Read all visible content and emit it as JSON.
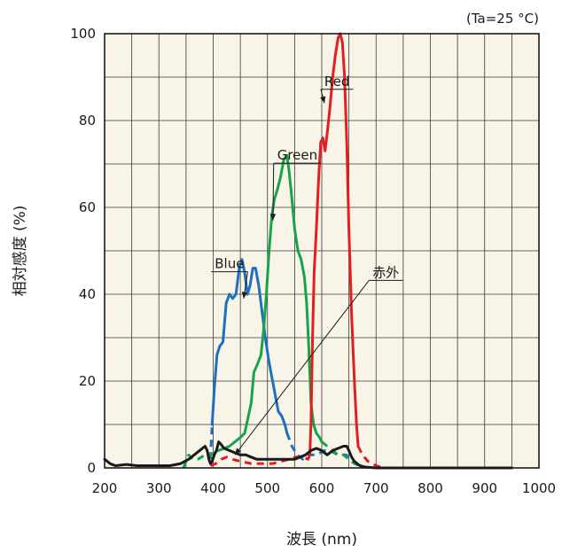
{
  "chart_data": {
    "type": "line",
    "condition": "(Ta=25 °C)",
    "xlabel": "波長 (nm)",
    "ylabel": "相対感度 (%)",
    "xlim": [
      200,
      1000
    ],
    "ylim": [
      0,
      100
    ],
    "xticks": [
      200,
      300,
      400,
      500,
      600,
      700,
      800,
      900,
      1000
    ],
    "yticks": [
      0,
      20,
      40,
      60,
      80,
      100
    ],
    "grid": true,
    "background": "#f8f4e8",
    "series": [
      {
        "name": "Blue",
        "color": "#1e6fbf",
        "solid": [
          [
            398,
            10
          ],
          [
            402,
            18
          ],
          [
            407,
            26
          ],
          [
            412,
            28
          ],
          [
            418,
            29
          ],
          [
            424,
            38
          ],
          [
            430,
            40
          ],
          [
            436,
            39
          ],
          [
            442,
            40
          ],
          [
            448,
            46
          ],
          [
            453,
            48
          ],
          [
            458,
            45
          ],
          [
            463,
            40
          ],
          [
            468,
            42
          ],
          [
            473,
            46
          ],
          [
            478,
            46
          ],
          [
            484,
            42
          ],
          [
            490,
            36
          ],
          [
            496,
            30
          ],
          [
            502,
            25
          ],
          [
            508,
            21
          ],
          [
            514,
            17
          ],
          [
            520,
            13
          ],
          [
            526,
            12
          ],
          [
            532,
            10
          ],
          [
            536,
            8
          ]
        ],
        "dashed": [
          [
            395,
            2
          ],
          [
            398,
            10
          ]
        ],
        "dashed_tail": [
          [
            536,
            8
          ],
          [
            545,
            5
          ],
          [
            555,
            3
          ],
          [
            565,
            2
          ],
          [
            575,
            3
          ],
          [
            590,
            3
          ],
          [
            605,
            4
          ],
          [
            615,
            4
          ],
          [
            630,
            3
          ],
          [
            645,
            3
          ],
          [
            660,
            1
          ],
          [
            670,
            0.5
          ]
        ]
      },
      {
        "name": "Green",
        "color": "#17a34a",
        "solid": [
          [
            410,
            4
          ],
          [
            420,
            4.5
          ],
          [
            430,
            5
          ],
          [
            440,
            6
          ],
          [
            450,
            7
          ],
          [
            458,
            8
          ],
          [
            465,
            12
          ],
          [
            470,
            15
          ],
          [
            475,
            22
          ],
          [
            482,
            24
          ],
          [
            488,
            26
          ],
          [
            493,
            32
          ],
          [
            498,
            40
          ],
          [
            503,
            50
          ],
          [
            508,
            58
          ],
          [
            513,
            62
          ],
          [
            518,
            64
          ],
          [
            524,
            67
          ],
          [
            530,
            71
          ],
          [
            536,
            72
          ],
          [
            540,
            68
          ],
          [
            545,
            62
          ],
          [
            550,
            55
          ],
          [
            556,
            50
          ],
          [
            562,
            48
          ],
          [
            568,
            44
          ],
          [
            572,
            38
          ],
          [
            576,
            28
          ],
          [
            580,
            15
          ],
          [
            585,
            10
          ],
          [
            590,
            8
          ],
          [
            596,
            7
          ],
          [
            600,
            6
          ]
        ],
        "dashed": [
          [
            345,
            0
          ],
          [
            350,
            1.5
          ],
          [
            355,
            3
          ],
          [
            362,
            2
          ],
          [
            372,
            2
          ],
          [
            385,
            3
          ],
          [
            395,
            3
          ],
          [
            403,
            3.5
          ],
          [
            410,
            4
          ]
        ],
        "dashed_tail": [
          [
            600,
            6
          ],
          [
            610,
            5
          ],
          [
            620,
            4
          ],
          [
            630,
            3
          ],
          [
            640,
            3
          ],
          [
            650,
            2
          ],
          [
            660,
            1
          ],
          [
            670,
            0.5
          ]
        ]
      },
      {
        "name": "Red",
        "color": "#e02020",
        "solid": [
          [
            578,
            3
          ],
          [
            580,
            10
          ],
          [
            583,
            30
          ],
          [
            586,
            45
          ],
          [
            590,
            55
          ],
          [
            594,
            66
          ],
          [
            598,
            75
          ],
          [
            602,
            76
          ],
          [
            606,
            73
          ],
          [
            610,
            77
          ],
          [
            615,
            83
          ],
          [
            620,
            90
          ],
          [
            625,
            95
          ],
          [
            630,
            99
          ],
          [
            634,
            100
          ],
          [
            638,
            98
          ],
          [
            642,
            90
          ],
          [
            646,
            75
          ],
          [
            650,
            55
          ],
          [
            655,
            35
          ],
          [
            660,
            20
          ],
          [
            664,
            10
          ],
          [
            667,
            5
          ]
        ],
        "dashed": [
          [
            395,
            0.5
          ],
          [
            405,
            1
          ],
          [
            415,
            2
          ],
          [
            425,
            2.5
          ],
          [
            435,
            2
          ],
          [
            450,
            1.5
          ],
          [
            470,
            1
          ],
          [
            490,
            1
          ],
          [
            510,
            1
          ],
          [
            525,
            1.5
          ],
          [
            540,
            2
          ],
          [
            552,
            2.5
          ],
          [
            565,
            2.5
          ],
          [
            575,
            2
          ],
          [
            578,
            3
          ]
        ],
        "dashed_tail": [
          [
            667,
            5
          ],
          [
            675,
            3
          ],
          [
            685,
            1.5
          ],
          [
            695,
            0.8
          ],
          [
            705,
            0.3
          ],
          [
            715,
            0
          ]
        ]
      },
      {
        "name": "赤外",
        "color": "#1a1a1a",
        "solid": [
          [
            200,
            2
          ],
          [
            210,
            1
          ],
          [
            220,
            0.5
          ],
          [
            240,
            0.8
          ],
          [
            260,
            0.5
          ],
          [
            280,
            0.5
          ],
          [
            300,
            0.5
          ],
          [
            320,
            0.5
          ],
          [
            340,
            1
          ],
          [
            355,
            2
          ],
          [
            365,
            3
          ],
          [
            375,
            4
          ],
          [
            380,
            4.5
          ],
          [
            385,
            5
          ],
          [
            389,
            4
          ],
          [
            392,
            2
          ],
          [
            395,
            1
          ],
          [
            398,
            1.5
          ],
          [
            402,
            3
          ],
          [
            406,
            4
          ],
          [
            410,
            6
          ],
          [
            414,
            5.5
          ],
          [
            420,
            4.5
          ],
          [
            430,
            4
          ],
          [
            440,
            3.5
          ],
          [
            450,
            3
          ],
          [
            460,
            3
          ],
          [
            470,
            2.5
          ],
          [
            480,
            2
          ],
          [
            490,
            2
          ],
          [
            500,
            2
          ],
          [
            510,
            2
          ],
          [
            520,
            2
          ],
          [
            530,
            2
          ],
          [
            540,
            2
          ],
          [
            550,
            2
          ],
          [
            560,
            2.5
          ],
          [
            570,
            3
          ],
          [
            580,
            4
          ],
          [
            590,
            4.5
          ],
          [
            600,
            4
          ],
          [
            610,
            3
          ],
          [
            620,
            4
          ],
          [
            630,
            4.5
          ],
          [
            640,
            5
          ],
          [
            646,
            5
          ],
          [
            650,
            4
          ],
          [
            655,
            2.5
          ],
          [
            660,
            1.5
          ],
          [
            670,
            0.5
          ],
          [
            680,
            0.2
          ],
          [
            700,
            0
          ],
          [
            800,
            0
          ],
          [
            900,
            0
          ],
          [
            950,
            0
          ]
        ],
        "dashed": [],
        "dashed_tail": []
      }
    ],
    "annotations": [
      {
        "text": "Red",
        "series": "Red",
        "label_at": [
          628,
          88
        ],
        "point": [
          605,
          84
        ]
      },
      {
        "text": "Green",
        "series": "Green",
        "label_at": [
          555,
          71
        ],
        "point": [
          510,
          57
        ]
      },
      {
        "text": "Blue",
        "series": "Blue",
        "label_at": [
          430,
          46
        ],
        "point": [
          456,
          39
        ]
      },
      {
        "text": "赤外",
        "series": "赤外",
        "label_at": [
          718,
          44
        ],
        "point": [
          440,
          3
        ]
      }
    ]
  }
}
